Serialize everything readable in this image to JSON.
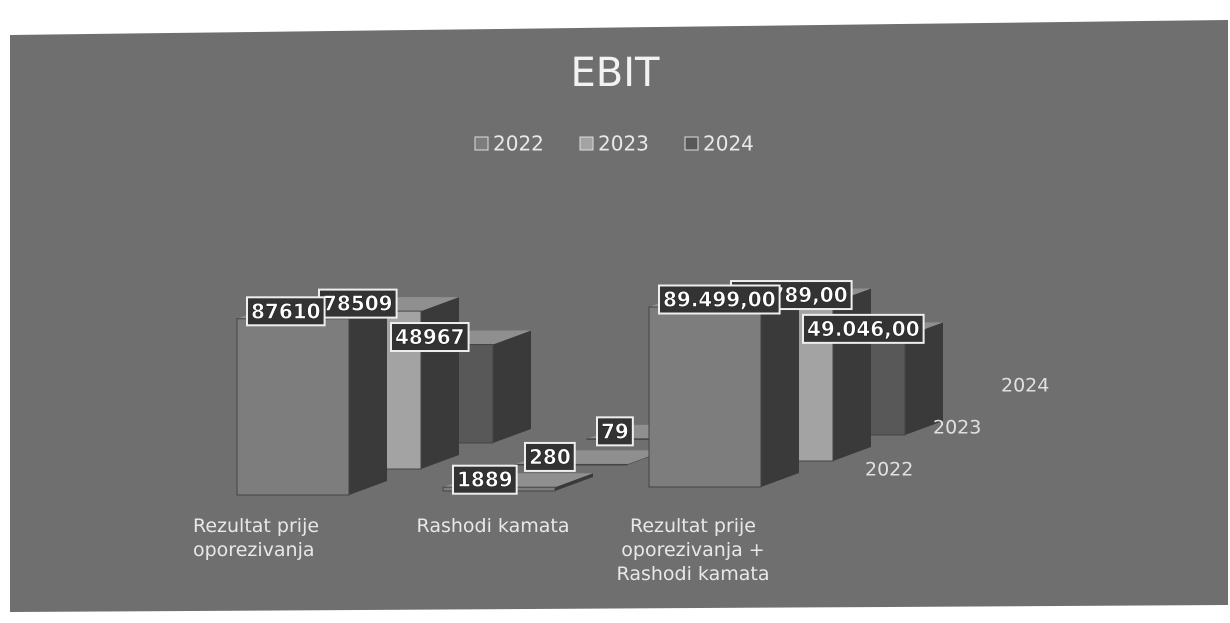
{
  "chart_data": {
    "type": "bar3d",
    "title": "EBIT",
    "categories": [
      "Rezultat prije oporezivanja",
      "Rashodi kamata",
      "Rezultat prije oporezivanja + Rashodi kamata"
    ],
    "series": [
      {
        "name": "2022",
        "color": "#7d7d7d",
        "values": [
          87610,
          1889,
          89499
        ],
        "value_labels": [
          "87610",
          "1889",
          "89.499,00"
        ]
      },
      {
        "name": "2023",
        "color": "#a3a3a3",
        "values": [
          78509,
          280,
          78789
        ],
        "value_labels": [
          "78509",
          "280",
          "78.789,00"
        ]
      },
      {
        "name": "2024",
        "color": "#585858",
        "values": [
          48967,
          79,
          49046
        ],
        "value_labels": [
          "48967",
          "79",
          "49.046,00"
        ]
      }
    ],
    "legend": "top"
  }
}
